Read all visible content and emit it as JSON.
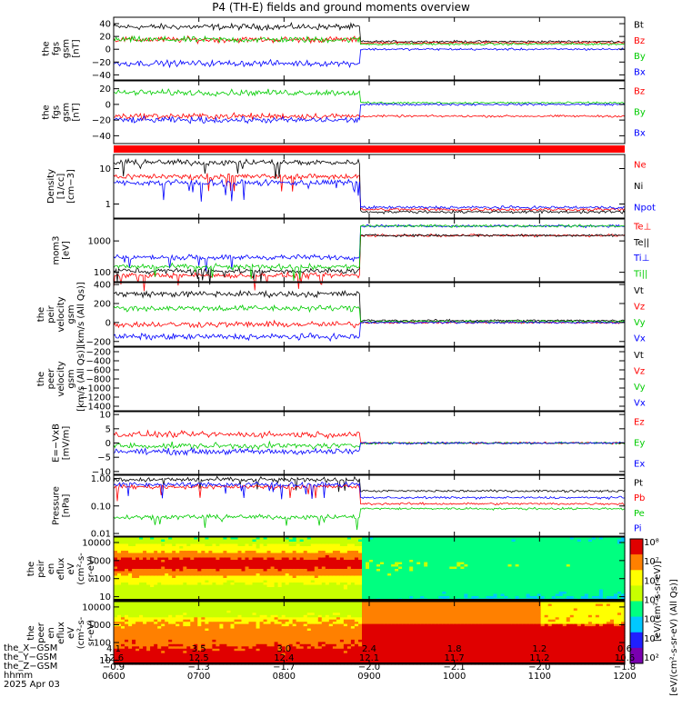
{
  "title": "P4 (TH-E) fields and ground moments overview",
  "panels": [
    {
      "id": "p1",
      "ylabel": [
        "the",
        "fgs",
        "gsm",
        "[nT]"
      ],
      "ticks": [
        "40",
        "20",
        "0",
        "−20",
        "−40"
      ],
      "yvals": [
        40,
        20,
        0,
        -20,
        -40
      ],
      "ylim": [
        -48,
        50
      ],
      "legend": [
        {
          "name": "Bt",
          "color": "#000000"
        },
        {
          "name": "Bz",
          "color": "#ff0000"
        },
        {
          "name": "By",
          "color": "#00cc00"
        },
        {
          "name": "Bx",
          "color": "#0000ff"
        }
      ]
    },
    {
      "id": "p2",
      "ylabel": [
        "the",
        "fgs",
        "gsm",
        "[nT]"
      ],
      "ticks": [
        "20",
        "0",
        "−20",
        "−40"
      ],
      "yvals": [
        20,
        0,
        -20,
        -40
      ],
      "ylim": [
        -50,
        30
      ],
      "legend": [
        {
          "name": "Bz",
          "color": "#ff0000"
        },
        {
          "name": "By",
          "color": "#00cc00"
        },
        {
          "name": "Bx",
          "color": "#0000ff"
        }
      ]
    },
    {
      "id": "p3",
      "ylabel": [
        "Density",
        "[1/cc]",
        "[cm−3]"
      ],
      "ticks": [
        "10",
        "1"
      ],
      "yvals": [
        10,
        1
      ],
      "ylim": [
        0.4,
        25
      ],
      "log": true,
      "legend": [
        {
          "name": "Ne",
          "color": "#ff0000"
        },
        {
          "name": "Ni",
          "color": "#000000"
        },
        {
          "name": "Npot",
          "color": "#0000ff"
        }
      ]
    },
    {
      "id": "p4",
      "ylabel": [
        "mom3",
        "[eV]"
      ],
      "ticks": [
        "1000",
        "100"
      ],
      "yvals": [
        1000,
        100
      ],
      "ylim": [
        50,
        5000
      ],
      "log": true,
      "legend": [
        {
          "name": "Te⊥",
          "color": "#ff0000"
        },
        {
          "name": "Te||",
          "color": "#000000"
        },
        {
          "name": "Ti⊥",
          "color": "#0000ff"
        },
        {
          "name": "Ti||",
          "color": "#00cc00"
        }
      ]
    },
    {
      "id": "p5",
      "ylabel": [
        "the",
        "peir",
        "velocity",
        "gsm",
        "[km/s (All Qs)]"
      ],
      "ticks": [
        "400",
        "200",
        "0",
        "−200"
      ],
      "yvals": [
        400,
        200,
        0,
        -200
      ],
      "ylim": [
        -250,
        420
      ],
      "legend": [
        {
          "name": "Vt",
          "color": "#000000"
        },
        {
          "name": "Vz",
          "color": "#ff0000"
        },
        {
          "name": "Vy",
          "color": "#00cc00"
        },
        {
          "name": "Vx",
          "color": "#0000ff"
        }
      ]
    },
    {
      "id": "p6",
      "ylabel": [
        "the",
        "peer",
        "velocity",
        "gsm",
        "[km/s (All Qs)]"
      ],
      "ticks": [
        "−200",
        "−400",
        "−600",
        "−800",
        "−1000",
        "−1200",
        "−1400"
      ],
      "yvals": [
        -200,
        -400,
        -600,
        -800,
        -1000,
        -1200,
        -1400
      ],
      "ylim": [
        -1500,
        -100
      ],
      "legend": [
        {
          "name": "Vt",
          "color": "#000000"
        },
        {
          "name": "Vz",
          "color": "#ff0000"
        },
        {
          "name": "Vy",
          "color": "#00cc00"
        },
        {
          "name": "Vx",
          "color": "#0000ff"
        }
      ]
    },
    {
      "id": "p7",
      "ylabel": [
        "E=−VxB",
        "[mV/m]"
      ],
      "ticks": [
        "10",
        "5",
        "0",
        "−5",
        "−10"
      ],
      "yvals": [
        10,
        5,
        0,
        -5,
        -10
      ],
      "ylim": [
        -11,
        11
      ],
      "legend": [
        {
          "name": "Ez",
          "color": "#ff0000"
        },
        {
          "name": "Ey",
          "color": "#00cc00"
        },
        {
          "name": "Ex",
          "color": "#0000ff"
        }
      ]
    },
    {
      "id": "p8",
      "ylabel": [
        "Pressure",
        "[nPa]"
      ],
      "ticks": [
        "1.00",
        "0.10",
        "0.01"
      ],
      "yvals": [
        1,
        0.1,
        0.01
      ],
      "ylim": [
        0.008,
        1.3
      ],
      "log": true,
      "legend": [
        {
          "name": "Pt",
          "color": "#000000"
        },
        {
          "name": "Pb",
          "color": "#ff0000"
        },
        {
          "name": "Pe",
          "color": "#00cc00"
        },
        {
          "name": "Pi",
          "color": "#0000ff"
        }
      ]
    },
    {
      "id": "p9",
      "ylabel": [
        "the",
        "peir",
        "en",
        "eflux",
        "eV",
        "(cm²-s-",
        "sr-eV)"
      ],
      "ticks": [
        "10000",
        "1000",
        "100",
        "10"
      ],
      "yvals": [
        10000,
        1000,
        100,
        10
      ],
      "ylim": [
        6,
        20000
      ],
      "log": true
    },
    {
      "id": "p10",
      "ylabel": [
        "the",
        "peer",
        "en",
        "eflux",
        "eV",
        "(cm²-s-",
        "sr-eV)"
      ],
      "ticks": [
        "10000",
        "1000",
        "100",
        "10"
      ],
      "yvals": [
        10000,
        1000,
        100,
        10
      ],
      "ylim": [
        6,
        20000
      ],
      "log": true
    }
  ],
  "colorbar": {
    "ticks": [
      "10⁸",
      "10⁷",
      "10⁶",
      "10⁵",
      "10⁴",
      "10³",
      "10²"
    ],
    "label": "[eV/(cm²-s-sr-eV) (All Qs)]",
    "label2": "[eV/(cm²-s-sr-eV)]"
  },
  "footer": {
    "rows": [
      {
        "label": "the_X−GSM",
        "values": [
          "4.1",
          "3.5",
          "3.0",
          "2.4",
          "1.8",
          "1.2",
          "0.6"
        ]
      },
      {
        "label": "the_Y−GSM",
        "values": [
          "12.6",
          "12.5",
          "12.4",
          "12.1",
          "11.7",
          "11.2",
          "10.6"
        ]
      },
      {
        "label": "the_Z−GSM",
        "values": [
          "−0.9",
          "−1.3",
          "−1.7",
          "−2.0",
          "−2.1",
          "−2.0",
          "−1.8"
        ]
      },
      {
        "label": "hhmm",
        "values": [
          "0600",
          "0700",
          "0800",
          "0900",
          "1000",
          "1100",
          "1200"
        ]
      }
    ],
    "date": "2025 Apr 03"
  },
  "chart_data": {
    "type": "line",
    "title": "P4 (TH-E) fields and ground moments overview",
    "x_ticks": [
      "0600",
      "0700",
      "0800",
      "0900",
      "1000",
      "1100",
      "1200"
    ],
    "x_hours": [
      6,
      7,
      8,
      9,
      10,
      11,
      12
    ],
    "boundary_hour": 8.9,
    "series": [
      {
        "panel": "p1",
        "name": "Bt",
        "values_pre": 35,
        "values_post": 12
      },
      {
        "panel": "p1",
        "name": "Bz",
        "values_pre": 15,
        "values_post": 10
      },
      {
        "panel": "p1",
        "name": "By",
        "values_pre": 15,
        "values_post": 8
      },
      {
        "panel": "p1",
        "name": "Bx",
        "values_pre": -22,
        "values_post": 0
      },
      {
        "panel": "p2",
        "name": "Bz",
        "values_pre": -15,
        "values_post": -15
      },
      {
        "panel": "p2",
        "name": "By",
        "values_pre": 15,
        "values_post": 2
      },
      {
        "panel": "p2",
        "name": "Bx",
        "values_pre": -20,
        "values_post": 0
      },
      {
        "panel": "p3",
        "name": "Ne",
        "values_pre": 6,
        "values_post": 0.7
      },
      {
        "panel": "p3",
        "name": "Ni",
        "values_pre": 15,
        "values_post": 0.6
      },
      {
        "panel": "p3",
        "name": "Npot",
        "values_pre": 4,
        "values_post": 0.8
      },
      {
        "panel": "p4",
        "name": "Te⊥",
        "values_pre": 80,
        "values_post": 1500
      },
      {
        "panel": "p4",
        "name": "Te||",
        "values_pre": 110,
        "values_post": 1500
      },
      {
        "panel": "p4",
        "name": "Ti⊥",
        "values_pre": 300,
        "values_post": 3000
      },
      {
        "panel": "p4",
        "name": "Ti||",
        "values_pre": 150,
        "values_post": 3000
      },
      {
        "panel": "p5",
        "name": "Vt",
        "values_pre": 300,
        "values_post": 20
      },
      {
        "panel": "p5",
        "name": "Vz",
        "values_pre": -20,
        "values_post": 0
      },
      {
        "panel": "p5",
        "name": "Vy",
        "values_pre": 150,
        "values_post": 10
      },
      {
        "panel": "p5",
        "name": "Vx",
        "values_pre": -150,
        "values_post": 0
      },
      {
        "panel": "p7",
        "name": "Ez",
        "values_pre": 3,
        "values_post": 0
      },
      {
        "panel": "p7",
        "name": "Ey",
        "values_pre": -1,
        "values_post": 0
      },
      {
        "panel": "p7",
        "name": "Ex",
        "values_pre": -3,
        "values_post": 0
      },
      {
        "panel": "p8",
        "name": "Pt",
        "values_pre": 0.9,
        "values_post": 0.35
      },
      {
        "panel": "p8",
        "name": "Pb",
        "values_pre": 0.5,
        "values_post": 0.12
      },
      {
        "panel": "p8",
        "name": "Pe",
        "values_pre": 0.04,
        "values_post": 0.08
      },
      {
        "panel": "p8",
        "name": "Pi",
        "values_pre": 0.6,
        "values_post": 0.2
      }
    ]
  }
}
